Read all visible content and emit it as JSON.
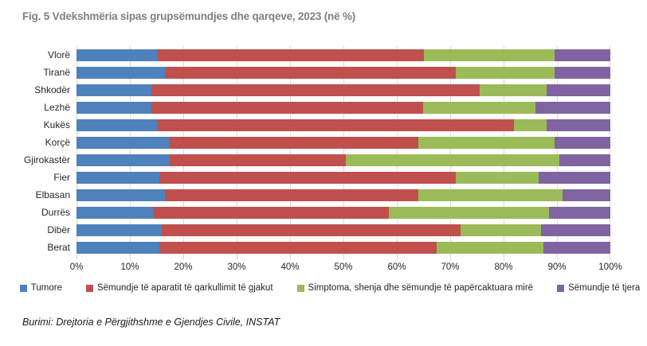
{
  "title": "Fig. 5 Vdekshmëria sipas grupsëmundjes dhe qarqeve, 2023 (në %)",
  "source": "Burimi: Drejtoria e Përgjithshme e Gjendjes Civile, INSTAT",
  "colors": {
    "tumore": "#4F81BD",
    "qarkullimit": "#C0504D",
    "simptoma": "#9BBB59",
    "tjera": "#8064A2",
    "gridline": "#D9D9D9",
    "title_gray": "#7F7F7F"
  },
  "chart_data": {
    "type": "bar",
    "orientation": "horizontal",
    "stacked": true,
    "unit": "%",
    "title": "Fig. 5 Vdekshmëria sipas grupsëmundjes dhe qarqeve, 2023 (në %)",
    "categories": [
      "Vlorë",
      "Tiranë",
      "Shkodër",
      "Lezhë",
      "Kukës",
      "Korçë",
      "Gjirokastër",
      "Fier",
      "Elbasan",
      "Durrës",
      "Dibër",
      "Berat"
    ],
    "series": [
      {
        "name": "Tumore",
        "color": "#4F81BD",
        "values": [
          15,
          16.5,
          14,
          14,
          15,
          17.5,
          17.5,
          15.5,
          16.5,
          14.5,
          16,
          15.5
        ]
      },
      {
        "name": "Sëmundje të aparatit të qarkullimit të gjakut",
        "color": "#C0504D",
        "values": [
          50,
          54.5,
          61.5,
          51,
          67,
          46.5,
          33,
          55.5,
          47.5,
          44,
          56,
          52
        ]
      },
      {
        "name": "Simptoma, shenja dhe sëmundje të papërcaktuara mirë",
        "color": "#9BBB59",
        "values": [
          24.5,
          18.5,
          12.5,
          21,
          6,
          25.5,
          40,
          15.5,
          27,
          30,
          15,
          20
        ]
      },
      {
        "name": "Sëmundje të tjera",
        "color": "#8064A2",
        "values": [
          10.5,
          10.5,
          12,
          14,
          12,
          10.5,
          9.5,
          13.5,
          9,
          11.5,
          13,
          12.5
        ]
      }
    ],
    "xlim": [
      0,
      100
    ],
    "xticklabels": [
      "0%",
      "10%",
      "20%",
      "30%",
      "40%",
      "50%",
      "60%",
      "70%",
      "80%",
      "90%",
      "100%"
    ],
    "grid": "vertical",
    "legend_position": "bottom"
  }
}
